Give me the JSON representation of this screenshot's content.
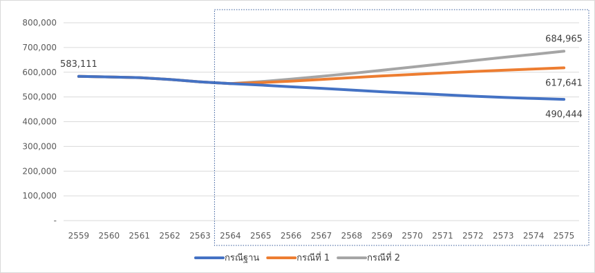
{
  "chart_data": {
    "type": "line",
    "categories": [
      "2559",
      "2560",
      "2561",
      "2562",
      "2563",
      "2564",
      "2565",
      "2566",
      "2567",
      "2568",
      "2569",
      "2570",
      "2571",
      "2572",
      "2573",
      "2574",
      "2575"
    ],
    "ylim": [
      0,
      800000
    ],
    "y_ticks": [
      {
        "value": 0,
        "label": "-"
      },
      {
        "value": 100000,
        "label": "100,000"
      },
      {
        "value": 200000,
        "label": "200,000"
      },
      {
        "value": 300000,
        "label": "300,000"
      },
      {
        "value": 400000,
        "label": "400,000"
      },
      {
        "value": 500000,
        "label": "500,000"
      },
      {
        "value": 600000,
        "label": "600,000"
      },
      {
        "value": 700000,
        "label": "700,000"
      },
      {
        "value": 800000,
        "label": "800,000"
      }
    ],
    "grid": true,
    "legend_position": "bottom",
    "projection_start_category": "2564",
    "series": [
      {
        "name": "กรณีฐาน",
        "color": "#4472C4",
        "values": [
          583111,
          581000,
          578000,
          571000,
          561000,
          554000,
          548000,
          541000,
          535000,
          528000,
          521000,
          515000,
          509000,
          503000,
          498000,
          494000,
          490444
        ]
      },
      {
        "name": "กรณีที่ 1",
        "color": "#ED7D31",
        "values": [
          583111,
          581000,
          578000,
          571000,
          561000,
          554000,
          558000,
          564000,
          571000,
          578000,
          585000,
          591000,
          597000,
          603000,
          608000,
          613000,
          617641
        ]
      },
      {
        "name": "กรณีที่ 2",
        "color": "#A5A5A5",
        "values": [
          583111,
          581000,
          578000,
          571000,
          561000,
          554000,
          562000,
          572000,
          583000,
          595000,
          608000,
          621000,
          634000,
          647000,
          660000,
          672000,
          684965
        ]
      }
    ],
    "data_labels": [
      {
        "text": "583,111",
        "series": 0,
        "index": 0,
        "placement": "above"
      },
      {
        "text": "684,965",
        "series": 2,
        "index": 16,
        "placement": "above"
      },
      {
        "text": "617,641",
        "series": 1,
        "index": 16,
        "placement": "below"
      },
      {
        "text": "490,444",
        "series": 0,
        "index": 16,
        "placement": "below"
      }
    ]
  }
}
